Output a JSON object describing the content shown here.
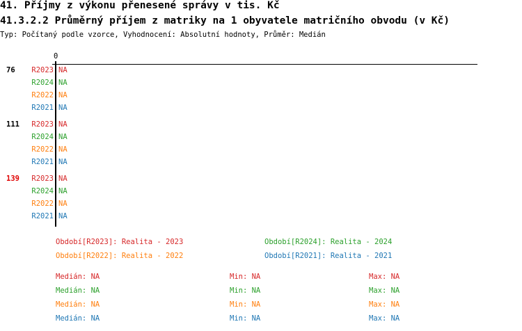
{
  "header": {
    "title": "41. Příjmy z výkonu přenesené správy v tis. Kč",
    "subtitle": "41.3.2.2 Průměrný příjem z matriky na 1 obyvatele matričního obvodu (v Kč)",
    "info": "Typ: Počítaný podle vzorce, Vyhodnocení: Absolutní hodnoty, Průměr: Medián"
  },
  "chart_data": {
    "type": "bar",
    "orientation": "horizontal",
    "x_tick_labels": [
      "0"
    ],
    "categories": [
      {
        "label": "76",
        "highlight": false
      },
      {
        "label": "111",
        "highlight": false
      },
      {
        "label": "139",
        "highlight": true
      }
    ],
    "series": [
      {
        "name": "R2023",
        "color": "#d62728",
        "values": [
          "NA",
          "NA",
          "NA"
        ]
      },
      {
        "name": "R2024",
        "color": "#2ca02c",
        "values": [
          "NA",
          "NA",
          "NA"
        ]
      },
      {
        "name": "R2022",
        "color": "#ff7f0e",
        "values": [
          "NA",
          "NA",
          "NA"
        ]
      },
      {
        "name": "R2021",
        "color": "#1f77b4",
        "values": [
          "NA",
          "NA",
          "NA"
        ]
      }
    ],
    "highlight_color": "#e00000",
    "legend": [
      {
        "text": "Období[R2023]: Realita - 2023",
        "color": "#d62728"
      },
      {
        "text": "Období[R2024]: Realita - 2024",
        "color": "#2ca02c"
      },
      {
        "text": "Období[R2022]: Realita - 2022",
        "color": "#ff7f0e"
      },
      {
        "text": "Období[R2021]: Realita - 2021",
        "color": "#1f77b4"
      }
    ],
    "stats": [
      {
        "median": "Medián: NA",
        "min": "Min: NA",
        "max": "Max: NA",
        "color": "#d62728"
      },
      {
        "median": "Medián: NA",
        "min": "Min: NA",
        "max": "Max: NA",
        "color": "#2ca02c"
      },
      {
        "median": "Medián: NA",
        "min": "Min: NA",
        "max": "Max: NA",
        "color": "#ff7f0e"
      },
      {
        "median": "Medián: NA",
        "min": "Min: NA",
        "max": "Max: NA",
        "color": "#1f77b4"
      }
    ]
  }
}
